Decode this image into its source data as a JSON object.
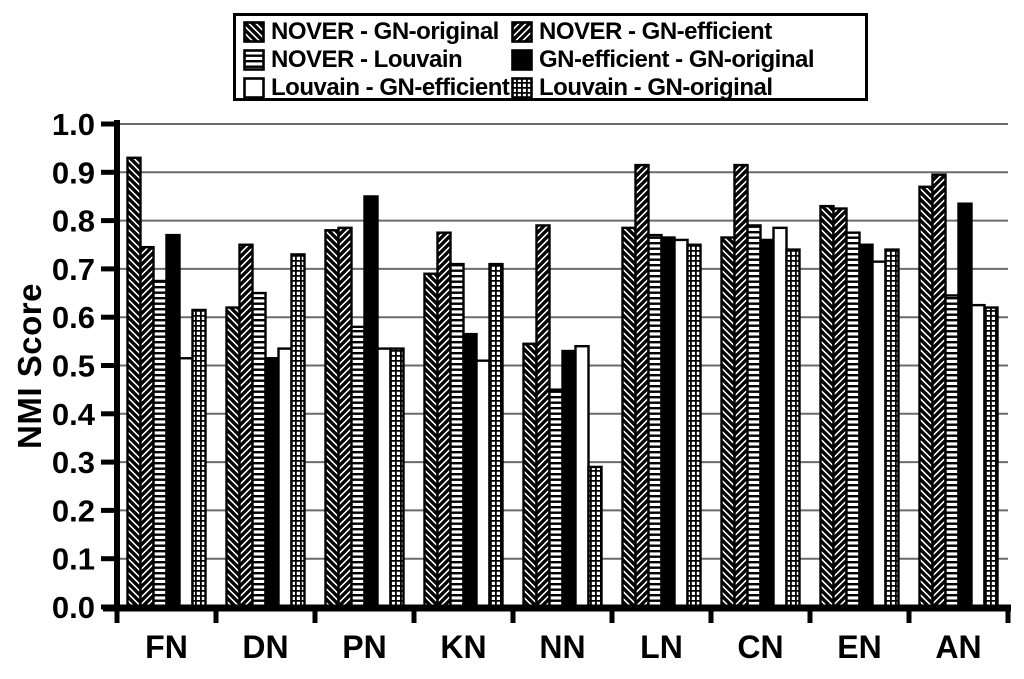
{
  "chart_data": {
    "type": "bar",
    "title": "",
    "ylabel": "NMI Score",
    "xlabel": "",
    "ylim": [
      0.0,
      1.0
    ],
    "ytick_step": 0.1,
    "yticks": [
      "1.0",
      "0.9",
      "0.8",
      "0.7",
      "0.6",
      "0.5",
      "0.4",
      "0.3",
      "0.2",
      "0.1",
      "0.0"
    ],
    "grid": true,
    "legend_position": "top",
    "categories": [
      "FN",
      "DN",
      "PN",
      "KN",
      "NN",
      "LN",
      "CN",
      "EN",
      "AN"
    ],
    "series": [
      {
        "name": "NOVER - GN-original",
        "pattern": "backslash-hatch",
        "values": [
          0.93,
          0.62,
          0.78,
          0.69,
          0.545,
          0.785,
          0.765,
          0.83,
          0.87
        ]
      },
      {
        "name": "NOVER - GN-efficient",
        "pattern": "slash-hatch",
        "values": [
          0.745,
          0.75,
          0.785,
          0.775,
          0.79,
          0.915,
          0.915,
          0.825,
          0.895
        ]
      },
      {
        "name": "NOVER - Louvain",
        "pattern": "horizontal-lines",
        "values": [
          0.675,
          0.65,
          0.58,
          0.71,
          0.45,
          0.77,
          0.79,
          0.775,
          0.645
        ]
      },
      {
        "name": "GN-efficient - GN-original",
        "pattern": "solid-black",
        "values": [
          0.77,
          0.515,
          0.85,
          0.565,
          0.53,
          0.765,
          0.76,
          0.75,
          0.835
        ]
      },
      {
        "name": "Louvain - GN-efficient",
        "pattern": "white",
        "values": [
          0.515,
          0.535,
          0.535,
          0.51,
          0.54,
          0.76,
          0.785,
          0.715,
          0.625
        ]
      },
      {
        "name": "Louvain - GN-original",
        "pattern": "grid-check",
        "values": [
          0.615,
          0.73,
          0.535,
          0.71,
          0.29,
          0.75,
          0.74,
          0.74,
          0.62
        ]
      }
    ]
  },
  "colors": {
    "background": "#ffffff",
    "bar_outline": "#000000",
    "bar_fill_black": "#000000",
    "bar_fill_white": "#ffffff",
    "grid_line": "#6b6b6b",
    "axis": "#000000",
    "text": "#000000"
  }
}
